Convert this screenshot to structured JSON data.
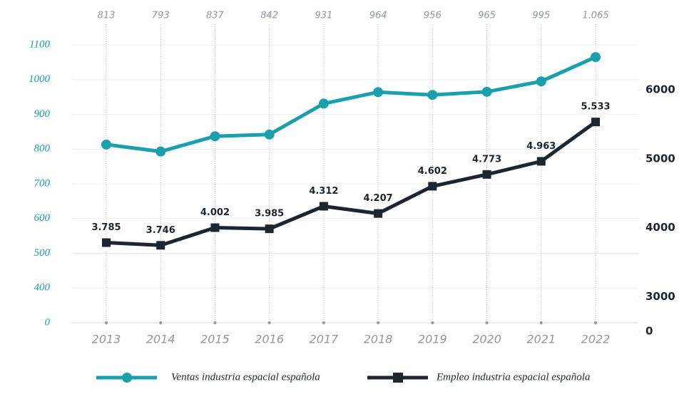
{
  "chart_data": {
    "type": "line",
    "categories": [
      "2013",
      "2014",
      "2015",
      "2016",
      "2017",
      "2018",
      "2019",
      "2020",
      "2021",
      "2022"
    ],
    "series": [
      {
        "name": "Ventas industria espacial española",
        "color": "#1a9fad",
        "marker": "circle",
        "values": [
          813,
          793,
          837,
          842,
          931,
          964,
          956,
          965,
          995,
          1065
        ],
        "value_labels": [
          "813",
          "793",
          "837",
          "842",
          "931",
          "964",
          "956",
          "965",
          "995",
          "1.065"
        ]
      },
      {
        "name": "Empleo industria espacial española",
        "color": "#1b2630",
        "marker": "square",
        "axis": "y2",
        "values": [
          3785,
          3746,
          4002,
          3985,
          4312,
          4207,
          4602,
          4773,
          4963,
          5533
        ],
        "value_labels": [
          "3.785",
          "3.746",
          "4.002",
          "3.985",
          "4.312",
          "4.207",
          "4.602",
          "4.773",
          "4.963",
          "5.533"
        ]
      }
    ],
    "ylim": [
      0,
      1100
    ],
    "yticks": [
      0,
      400,
      500,
      600,
      700,
      800,
      900,
      1000,
      1100
    ],
    "ybreak": [
      0,
      400
    ],
    "y2lim": [
      0,
      6650
    ],
    "y2ticks": [
      0,
      3000,
      4000,
      5000,
      6000
    ],
    "y2break": [
      0,
      3000
    ],
    "grid": true
  }
}
